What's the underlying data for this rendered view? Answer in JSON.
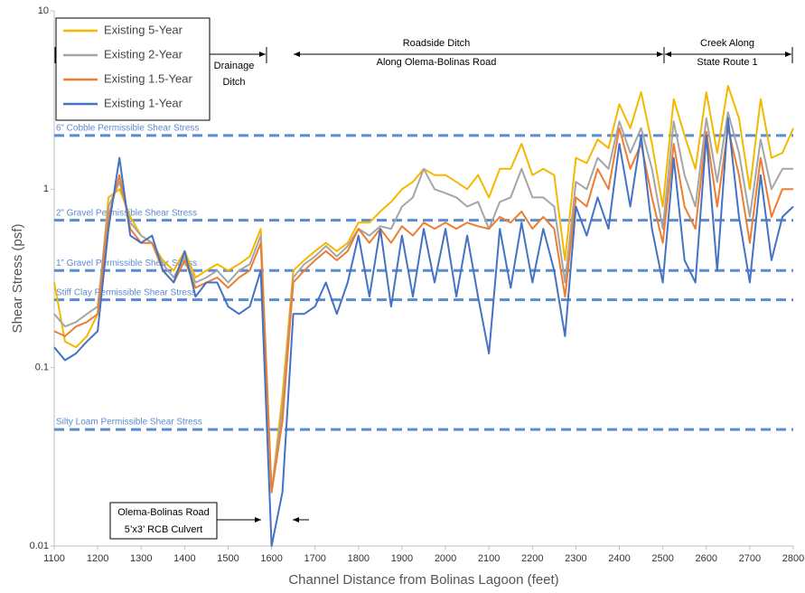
{
  "chart_data": {
    "type": "line",
    "y_label": "Shear Stress (psf)",
    "x_label": "Channel Distance from Bolinas Lagoon (feet)",
    "log_y": true,
    "grid": false,
    "legend_position": "top-left",
    "xlim": [
      1100,
      2800
    ],
    "xticks": [
      1100,
      1200,
      1300,
      1400,
      1500,
      1600,
      1700,
      1800,
      1900,
      2000,
      2100,
      2200,
      2300,
      2400,
      2500,
      2600,
      2700,
      2800
    ],
    "ylim": [
      0.01,
      10
    ],
    "yticks": [
      0.01,
      0.1,
      1,
      10
    ],
    "x": [
      1100,
      1125,
      1150,
      1175,
      1200,
      1225,
      1250,
      1275,
      1300,
      1325,
      1350,
      1375,
      1400,
      1425,
      1450,
      1475,
      1500,
      1525,
      1550,
      1575,
      1600,
      1625,
      1650,
      1675,
      1700,
      1725,
      1750,
      1775,
      1800,
      1825,
      1850,
      1875,
      1900,
      1925,
      1950,
      1975,
      2000,
      2025,
      2050,
      2075,
      2100,
      2125,
      2150,
      2175,
      2200,
      2225,
      2250,
      2275,
      2300,
      2325,
      2350,
      2375,
      2400,
      2425,
      2450,
      2475,
      2500,
      2525,
      2550,
      2575,
      2600,
      2625,
      2650,
      2675,
      2700,
      2725,
      2750,
      2775,
      2800
    ],
    "series": [
      {
        "name": "Existing 5-Year",
        "color": "#f5b800",
        "values": [
          0.3,
          0.14,
          0.13,
          0.15,
          0.2,
          0.9,
          1.0,
          0.7,
          0.55,
          0.5,
          0.4,
          0.35,
          0.45,
          0.32,
          0.35,
          0.38,
          0.35,
          0.38,
          0.42,
          0.6,
          0.02,
          0.07,
          0.35,
          0.4,
          0.45,
          0.5,
          0.45,
          0.5,
          0.65,
          0.65,
          0.75,
          0.85,
          1.0,
          1.1,
          1.3,
          1.2,
          1.2,
          1.1,
          1.0,
          1.2,
          0.9,
          1.3,
          1.3,
          1.8,
          1.2,
          1.3,
          1.2,
          0.4,
          1.5,
          1.4,
          1.9,
          1.7,
          3.0,
          2.2,
          3.5,
          1.8,
          0.8,
          3.2,
          2.0,
          1.3,
          3.5,
          1.6,
          3.8,
          2.5,
          1.0,
          3.2,
          1.5,
          1.6,
          2.2
        ]
      },
      {
        "name": "Existing 2-Year",
        "color": "#a5a5a5",
        "values": [
          0.2,
          0.17,
          0.18,
          0.2,
          0.22,
          0.8,
          1.1,
          0.65,
          0.55,
          0.5,
          0.38,
          0.32,
          0.42,
          0.3,
          0.32,
          0.35,
          0.3,
          0.35,
          0.38,
          0.55,
          0.02,
          0.06,
          0.32,
          0.38,
          0.42,
          0.48,
          0.42,
          0.48,
          0.6,
          0.55,
          0.62,
          0.6,
          0.8,
          0.9,
          1.3,
          1.0,
          0.95,
          0.9,
          0.8,
          0.85,
          0.6,
          0.85,
          0.9,
          1.3,
          0.9,
          0.9,
          0.8,
          0.3,
          1.1,
          1.0,
          1.5,
          1.3,
          2.4,
          1.6,
          2.2,
          1.3,
          0.6,
          2.4,
          1.2,
          0.8,
          2.5,
          1.1,
          2.7,
          1.6,
          0.7,
          1.9,
          1.0,
          1.3,
          1.3
        ]
      },
      {
        "name": "Existing 1.5-Year",
        "color": "#ed7d31",
        "values": [
          0.16,
          0.15,
          0.17,
          0.18,
          0.2,
          0.7,
          1.2,
          0.6,
          0.5,
          0.5,
          0.35,
          0.3,
          0.4,
          0.28,
          0.3,
          0.32,
          0.28,
          0.32,
          0.35,
          0.5,
          0.02,
          0.05,
          0.3,
          0.35,
          0.4,
          0.45,
          0.4,
          0.45,
          0.6,
          0.5,
          0.6,
          0.5,
          0.62,
          0.55,
          0.65,
          0.6,
          0.65,
          0.6,
          0.65,
          0.62,
          0.6,
          0.7,
          0.65,
          0.75,
          0.6,
          0.7,
          0.6,
          0.25,
          0.9,
          0.8,
          1.3,
          1.0,
          2.2,
          1.3,
          1.8,
          0.9,
          0.5,
          1.8,
          0.8,
          0.6,
          2.1,
          0.8,
          2.2,
          1.2,
          0.5,
          1.5,
          0.7,
          1.0,
          1.0
        ]
      },
      {
        "name": "Existing 1-Year",
        "color": "#4472c4",
        "values": [
          0.13,
          0.11,
          0.12,
          0.14,
          0.16,
          0.6,
          1.5,
          0.55,
          0.5,
          0.55,
          0.35,
          0.3,
          0.45,
          0.25,
          0.3,
          0.3,
          0.22,
          0.2,
          0.22,
          0.35,
          0.01,
          0.02,
          0.2,
          0.2,
          0.22,
          0.3,
          0.2,
          0.3,
          0.55,
          0.25,
          0.6,
          0.22,
          0.55,
          0.25,
          0.6,
          0.3,
          0.6,
          0.25,
          0.55,
          0.25,
          0.12,
          0.6,
          0.28,
          0.65,
          0.3,
          0.6,
          0.35,
          0.15,
          0.8,
          0.55,
          0.9,
          0.6,
          1.8,
          0.8,
          2.0,
          0.6,
          0.3,
          1.5,
          0.4,
          0.3,
          2.0,
          0.35,
          2.5,
          0.7,
          0.3,
          1.2,
          0.4,
          0.7,
          0.8
        ]
      }
    ],
    "reference_lines": [
      {
        "label": "6” Cobble Permissible Shear Stress",
        "value": 2,
        "color": "#5b8bd0"
      },
      {
        "label": "2” Gravel Permissible Shear Stress",
        "value": 0.67,
        "color": "#5b8bd0"
      },
      {
        "label": "1” Gravel Permissible Shear Stress",
        "value": 0.35,
        "color": "#5b8bd0"
      },
      {
        "label": "Stiff Clay Permissible Shear Stress",
        "value": 0.24,
        "color": "#5b8bd0"
      },
      {
        "label": "Silty Loam Permissible Shear Stress",
        "value": 0.045,
        "color": "#5b8bd0"
      }
    ],
    "annotations": [
      {
        "lines": [
          "Drainage",
          "Ditch"
        ]
      },
      {
        "lines": [
          "Roadside Ditch",
          "Along Olema-Bolinas Road"
        ]
      },
      {
        "lines": [
          "Creek Along",
          "State Route 1"
        ]
      },
      {
        "lines": [
          "Olema-Bolinas Road",
          "5’x3’ RCB Culvert"
        ]
      }
    ]
  }
}
